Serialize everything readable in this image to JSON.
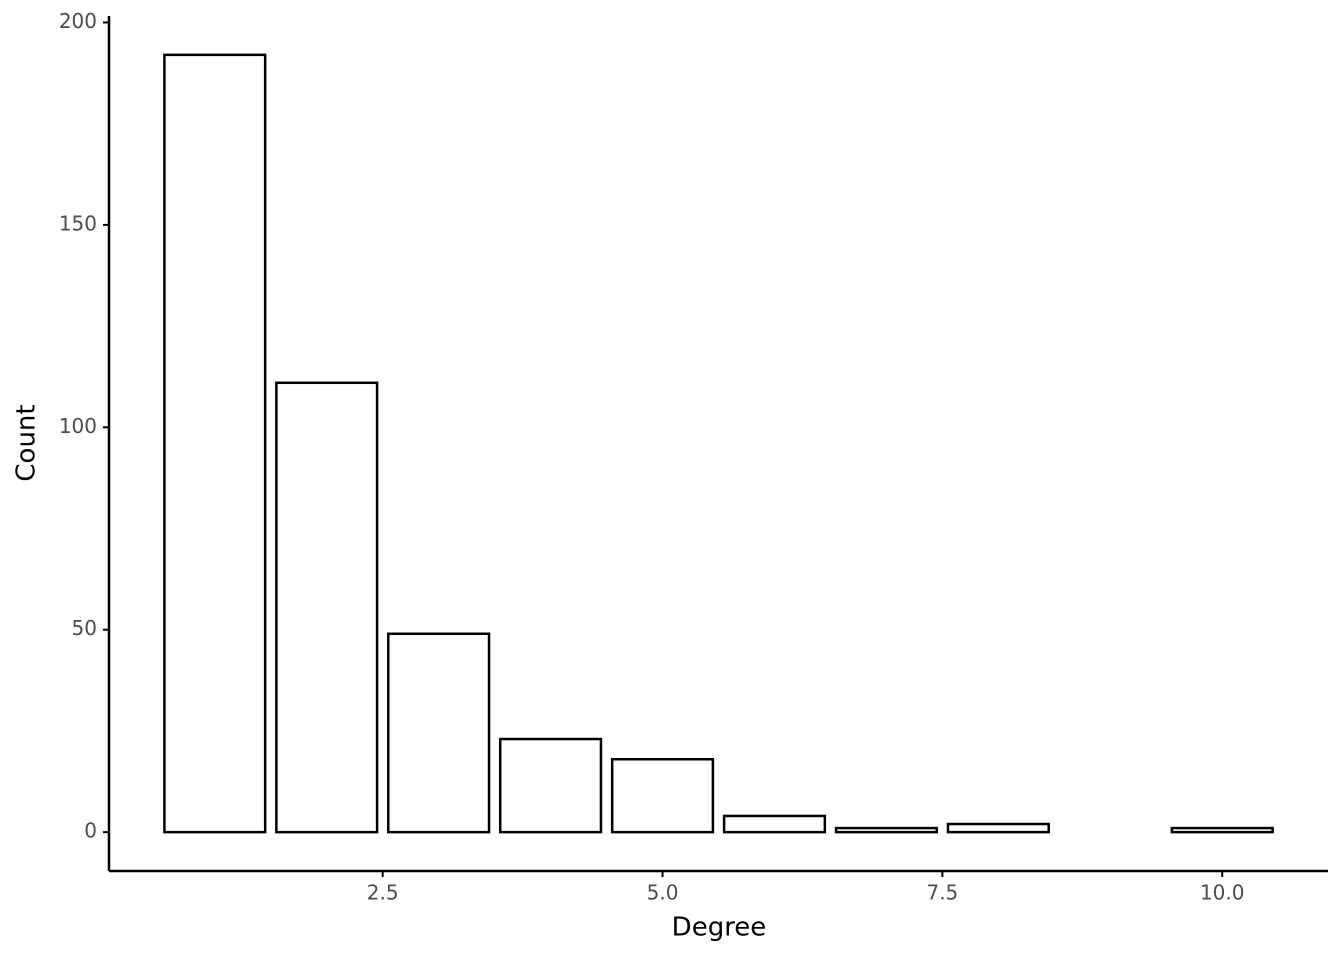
{
  "chart_data": {
    "type": "bar",
    "x": [
      1,
      2,
      3,
      4,
      5,
      6,
      7,
      8,
      10
    ],
    "values": [
      192,
      111,
      49,
      23,
      18,
      4,
      1,
      2,
      1
    ],
    "x_label": "Degree",
    "y_label": "Count",
    "xlim": [
      0.055,
      10.945
    ],
    "xticks": [
      2.5,
      {
        "value": 5,
        "label": "5.0"
      },
      7.5,
      {
        "value": 10,
        "label": "10.0"
      }
    ],
    "ylim": [
      -9.6,
      201.6
    ],
    "yticks": [
      0,
      50,
      100,
      150,
      200
    ],
    "color": "#ffffff",
    "edge_color": "#000000",
    "grid": false
  }
}
